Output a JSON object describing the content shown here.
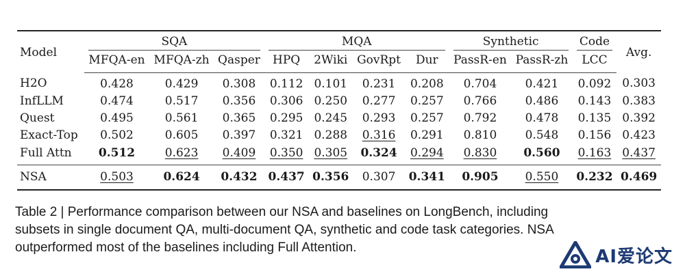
{
  "table": {
    "header": {
      "model": "Model",
      "avg": "Avg.",
      "groups": [
        {
          "label": "SQA",
          "cols": [
            "MFQA-en",
            "MFQA-zh",
            "Qasper"
          ]
        },
        {
          "label": "MQA",
          "cols": [
            "HPQ",
            "2Wiki",
            "GovRpt",
            "Dur"
          ]
        },
        {
          "label": "Synthetic",
          "cols": [
            "PassR-en",
            "PassR-zh"
          ]
        },
        {
          "label": "Code",
          "cols": [
            "LCC"
          ]
        }
      ]
    },
    "rows": [
      {
        "model": "H2O",
        "values": [
          "0.428",
          "0.429",
          "0.308",
          "0.112",
          "0.101",
          "0.231",
          "0.208",
          "0.704",
          "0.421",
          "0.092",
          "0.303"
        ],
        "bold": [],
        "underline": []
      },
      {
        "model": "InfLLM",
        "values": [
          "0.474",
          "0.517",
          "0.356",
          "0.306",
          "0.250",
          "0.277",
          "0.257",
          "0.766",
          "0.486",
          "0.143",
          "0.383"
        ],
        "bold": [],
        "underline": []
      },
      {
        "model": "Quest",
        "values": [
          "0.495",
          "0.561",
          "0.365",
          "0.295",
          "0.245",
          "0.293",
          "0.257",
          "0.792",
          "0.478",
          "0.135",
          "0.392"
        ],
        "bold": [],
        "underline": []
      },
      {
        "model": "Exact-Top",
        "values": [
          "0.502",
          "0.605",
          "0.397",
          "0.321",
          "0.288",
          "0.316",
          "0.291",
          "0.810",
          "0.548",
          "0.156",
          "0.423"
        ],
        "bold": [],
        "underline": [
          5
        ]
      },
      {
        "model": "Full Attn",
        "values": [
          "0.512",
          "0.623",
          "0.409",
          "0.350",
          "0.305",
          "0.324",
          "0.294",
          "0.830",
          "0.560",
          "0.163",
          "0.437"
        ],
        "bold": [
          0,
          5,
          8
        ],
        "underline": [
          1,
          2,
          3,
          4,
          6,
          7,
          9,
          10
        ]
      }
    ],
    "ours": {
      "model": "NSA",
      "values": [
        "0.503",
        "0.624",
        "0.432",
        "0.437",
        "0.356",
        "0.307",
        "0.341",
        "0.905",
        "0.550",
        "0.232",
        "0.469"
      ],
      "bold": [
        1,
        2,
        3,
        4,
        6,
        7,
        9,
        10
      ],
      "underline": [
        0,
        8
      ]
    }
  },
  "caption": {
    "lines": [
      "Table 2 | Performance comparison between our NSA and baselines on LongBench, including",
      "subsets in single document QA, multi-document QA, synthetic and code task categories. NSA",
      "outperformed most of the baselines including Full Attention."
    ]
  },
  "watermark": {
    "text": "AI爱论文",
    "logo": "ai-logo-icon",
    "color": "#1d3a73"
  }
}
